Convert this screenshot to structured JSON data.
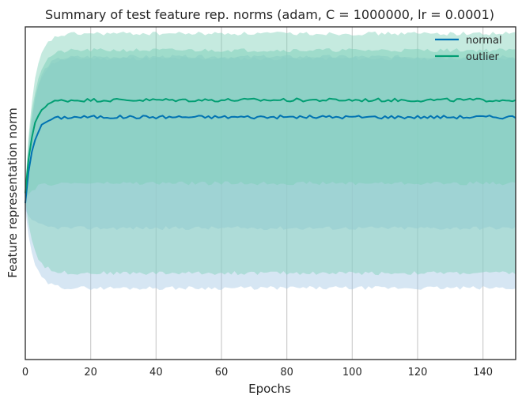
{
  "chart_data": {
    "type": "line",
    "title": "Summary of test feature rep. norms (adam, C = 1000000, lr = 0.0001)",
    "xlabel": "Epochs",
    "ylabel": "Feature representation norm",
    "xlim": [
      0,
      150
    ],
    "ylim": [
      0,
      1
    ],
    "xticks": [
      0,
      20,
      40,
      60,
      80,
      100,
      120,
      140
    ],
    "yticks_shown": false,
    "grid": "vertical",
    "legend": "top-right",
    "series": [
      {
        "name": "normal",
        "color": "#0173b2",
        "band_color": "#a5c8e4",
        "mean": {
          "start": 0.47,
          "end": 0.729,
          "tau": 2.2
        },
        "band_outer": {
          "lower": 0.215,
          "upper": 0.905
        },
        "band_inner": {
          "lower": 0.395,
          "upper": 0.91
        }
      },
      {
        "name": "outlier",
        "color": "#029e73",
        "band_color": "#7fd0b9",
        "mean": {
          "start": 0.5,
          "end": 0.78,
          "tau": 2.2
        },
        "band_outer": {
          "lower": 0.26,
          "upper": 0.98
        },
        "band_inner": {
          "lower": 0.53,
          "upper": 0.93
        }
      }
    ]
  },
  "legend": {
    "normal": "normal",
    "outlier": "outlier"
  }
}
